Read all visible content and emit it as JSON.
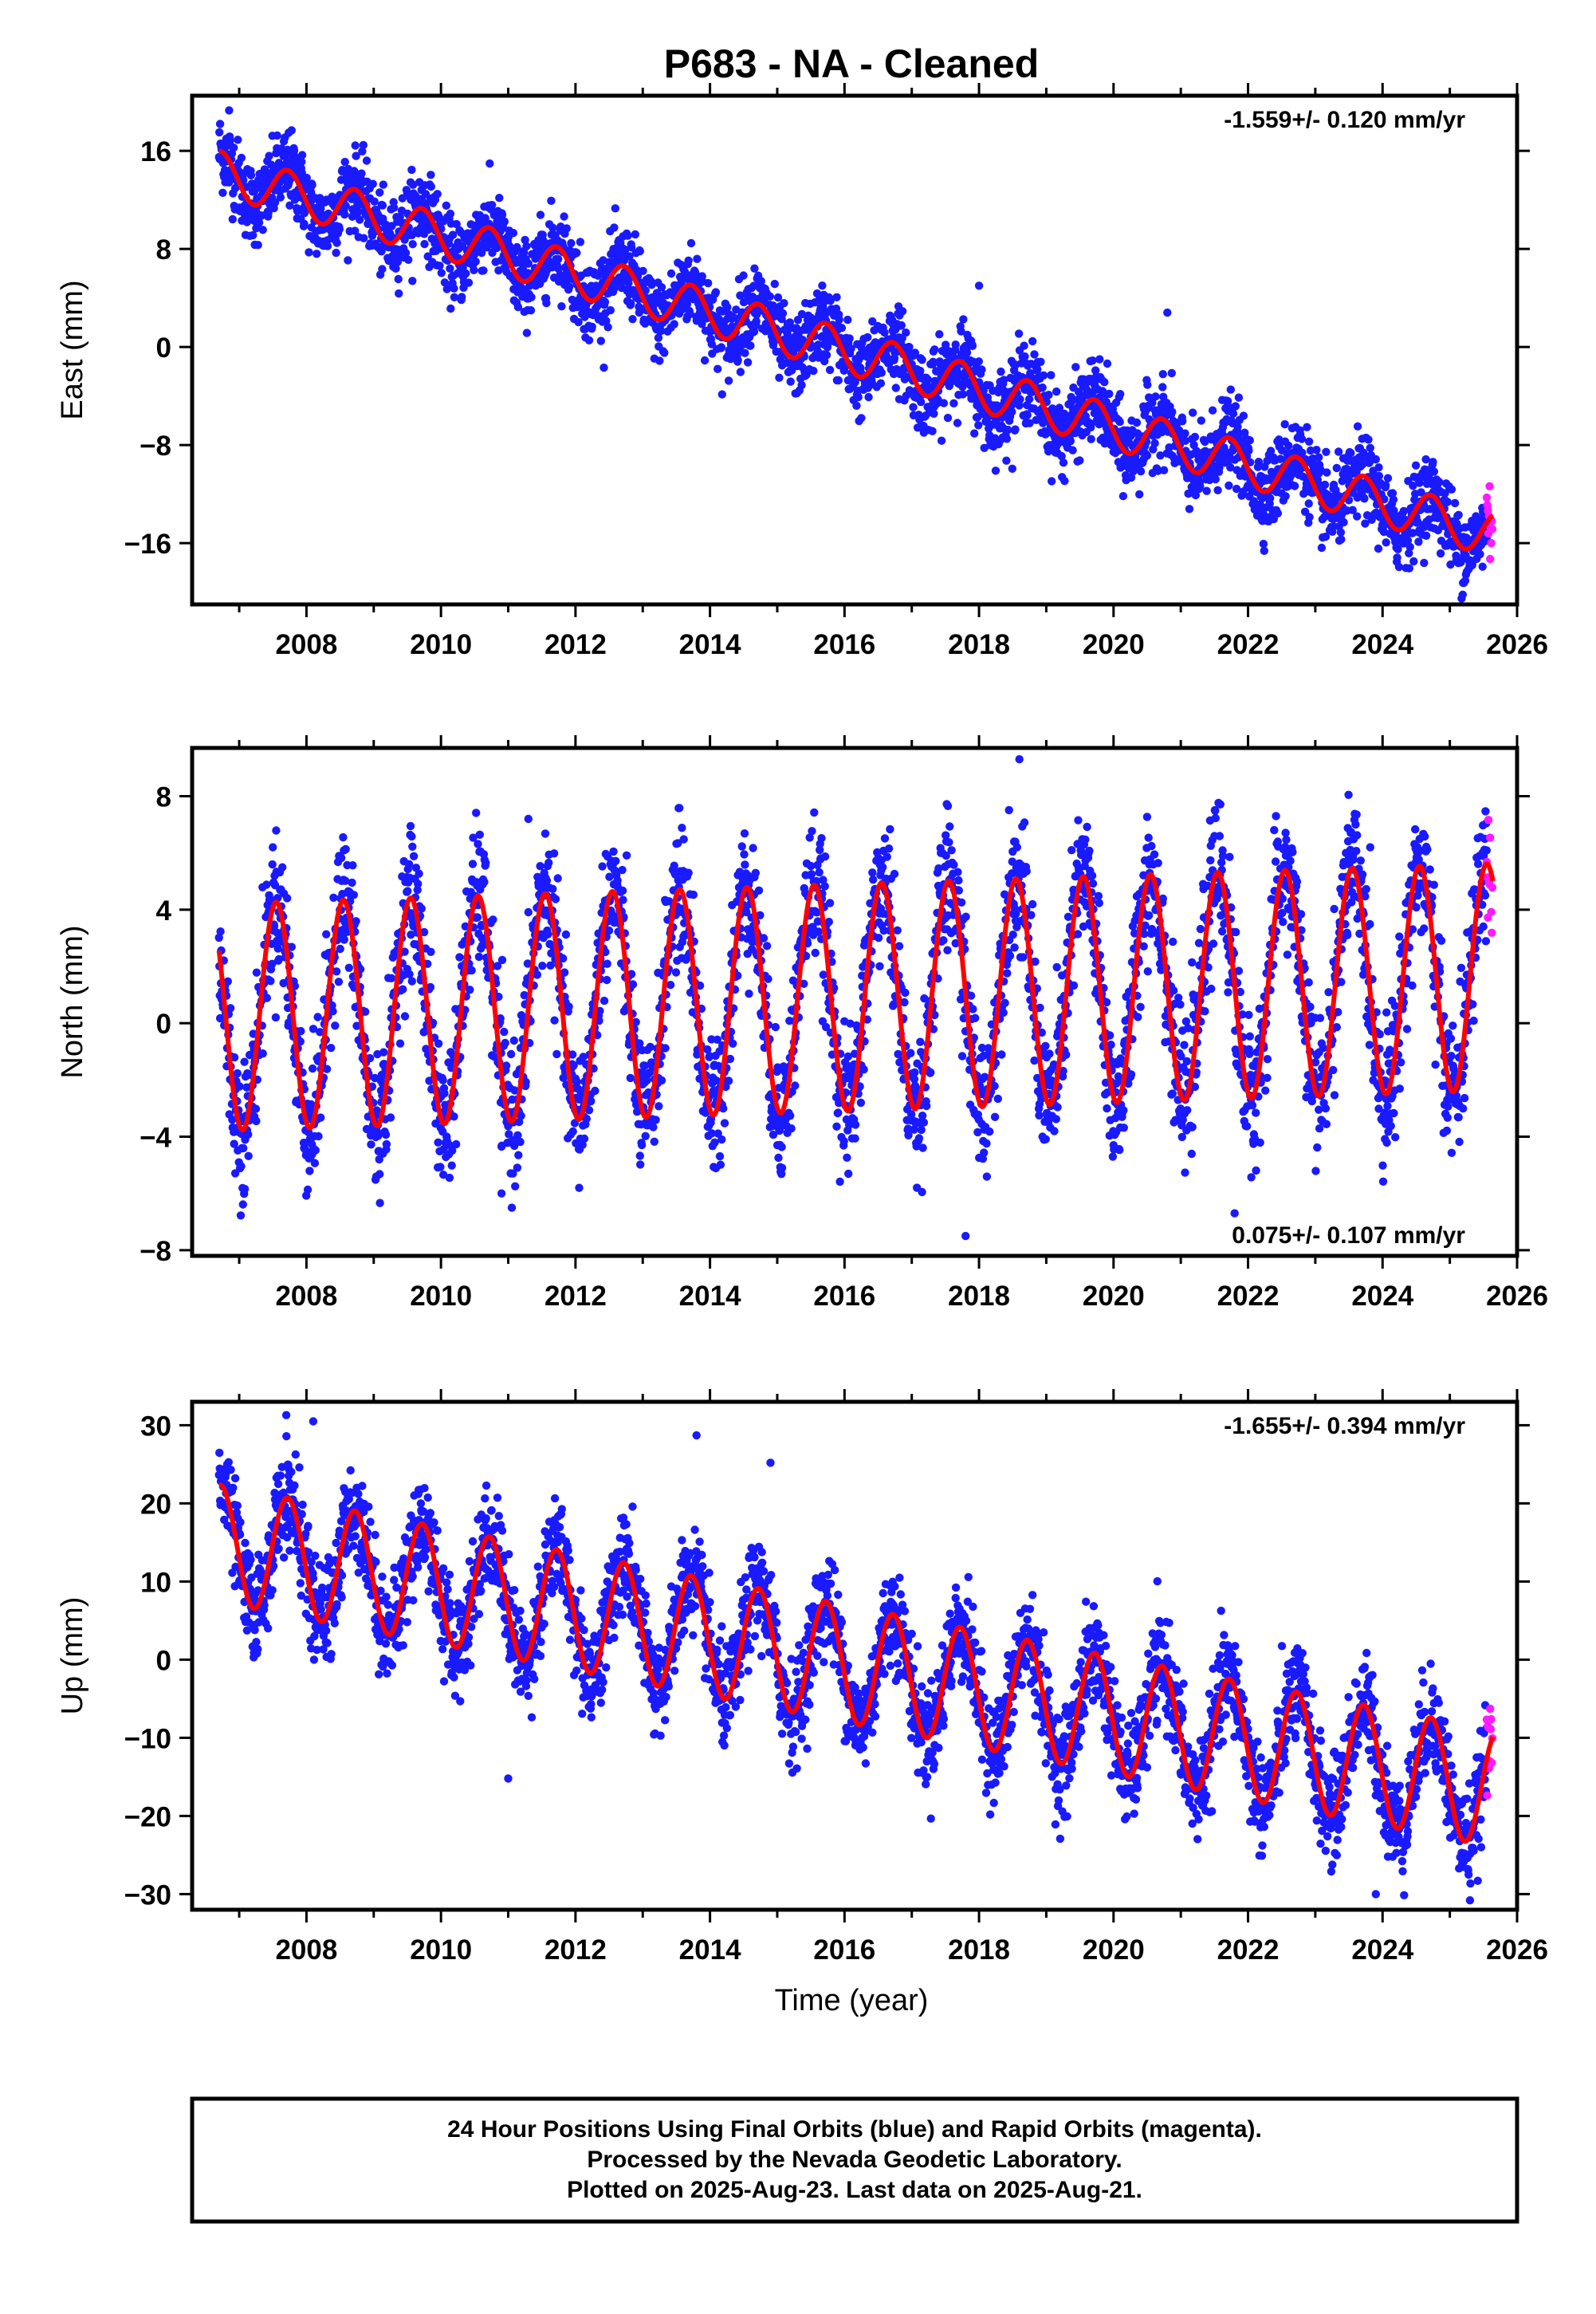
{
  "title": "P683  - NA - Cleaned",
  "xlabel": "Time (year)",
  "footer": {
    "line1": "24 Hour Positions Using Final Orbits (blue) and Rapid Orbits (magenta).",
    "line2": "Processed by the Nevada Geodetic Laboratory.",
    "line3": "Plotted on 2025-Aug-23. Last data on 2025-Aug-21."
  },
  "colors": {
    "final_orbits": "#1a1aff",
    "rapid_orbits": "#ff1aff",
    "model_fit": "#ff0000",
    "frame": "#000000"
  },
  "chart_data": [
    {
      "type": "scatter",
      "component": "east",
      "ylabel": "East (mm)",
      "rate_label": "-1.559+/- 0.120 mm/yr",
      "rate_label_position": "top-right",
      "xlim": [
        2006.3,
        2026.0
      ],
      "ylim": [
        -21,
        20.5
      ],
      "xticks": [
        2008,
        2010,
        2012,
        2014,
        2016,
        2018,
        2020,
        2022,
        2024,
        2026
      ],
      "yticks": [
        16,
        8,
        0,
        -8,
        -16
      ],
      "ytick_labels": [
        "16",
        "8",
        "0",
        "−8",
        "−16"
      ],
      "final_orbits_range": [
        2006.7,
        2025.55
      ],
      "rapid_orbits_range": [
        2025.55,
        2025.64
      ],
      "model": {
        "ref_epoch": 2016.0,
        "offset": -0.3,
        "rate": -1.559,
        "annual_amplitude": 1.8,
        "peak_phase": 0.72,
        "scatter": 1.6
      },
      "outliers": [
        [
          2020.8,
          2.8
        ],
        [
          2018.0,
          5.0
        ],
        [
          2007.8,
          15.4
        ],
        [
          2006.85,
          19.3
        ]
      ]
    },
    {
      "type": "scatter",
      "component": "north",
      "ylabel": "North (mm)",
      "rate_label": "0.075+/- 0.107 mm/yr",
      "rate_label_position": "bottom-right",
      "xlim": [
        2006.3,
        2026.0
      ],
      "ylim": [
        -8.2,
        9.7
      ],
      "xticks": [
        2008,
        2010,
        2012,
        2014,
        2016,
        2018,
        2020,
        2022,
        2024,
        2026
      ],
      "yticks": [
        8,
        4,
        0,
        -4,
        -8
      ],
      "ytick_labels": [
        "8",
        "4",
        "0",
        "−4",
        "−8"
      ],
      "final_orbits_range": [
        2006.7,
        2025.55
      ],
      "rapid_orbits_range": [
        2025.55,
        2025.64
      ],
      "model": {
        "ref_epoch": 2016.0,
        "offset": 0.9,
        "rate": 0.075,
        "annual_amplitude": 4.0,
        "peak_phase": 0.55,
        "scatter": 1.2
      },
      "outliers": [
        [
          2011.3,
          7.2
        ],
        [
          2018.6,
          9.3
        ],
        [
          2021.8,
          -6.7
        ],
        [
          2017.8,
          -7.5
        ],
        [
          2010.9,
          -6.0
        ]
      ]
    },
    {
      "type": "scatter",
      "component": "up",
      "ylabel": "Up (mm)",
      "rate_label": "-1.655+/- 0.394 mm/yr",
      "rate_label_position": "top-right",
      "xlim": [
        2006.3,
        2026.0
      ],
      "ylim": [
        -32,
        33
      ],
      "xticks": [
        2008,
        2010,
        2012,
        2014,
        2016,
        2018,
        2020,
        2022,
        2024,
        2026
      ],
      "yticks": [
        30,
        20,
        10,
        0,
        -10,
        -20,
        -30
      ],
      "ytick_labels": [
        "30",
        "20",
        "10",
        "0",
        "−10",
        "−20",
        "−30"
      ],
      "final_orbits_range": [
        2006.7,
        2025.55
      ],
      "rapid_orbits_range": [
        2025.55,
        2025.64
      ],
      "model": {
        "ref_epoch": 2016.0,
        "offset": -0.5,
        "rate": -1.655,
        "annual_amplitude": 7.5,
        "peak_phase": 0.72,
        "scatter": 3.2
      },
      "outliers": [
        [
          2013.8,
          28.7
        ],
        [
          2014.9,
          25.2
        ],
        [
          2008.1,
          30.5
        ],
        [
          2007.7,
          31.3
        ],
        [
          2011.0,
          -15.2
        ],
        [
          2023.9,
          -30.0
        ],
        [
          2025.3,
          -30.8
        ]
      ]
    }
  ]
}
